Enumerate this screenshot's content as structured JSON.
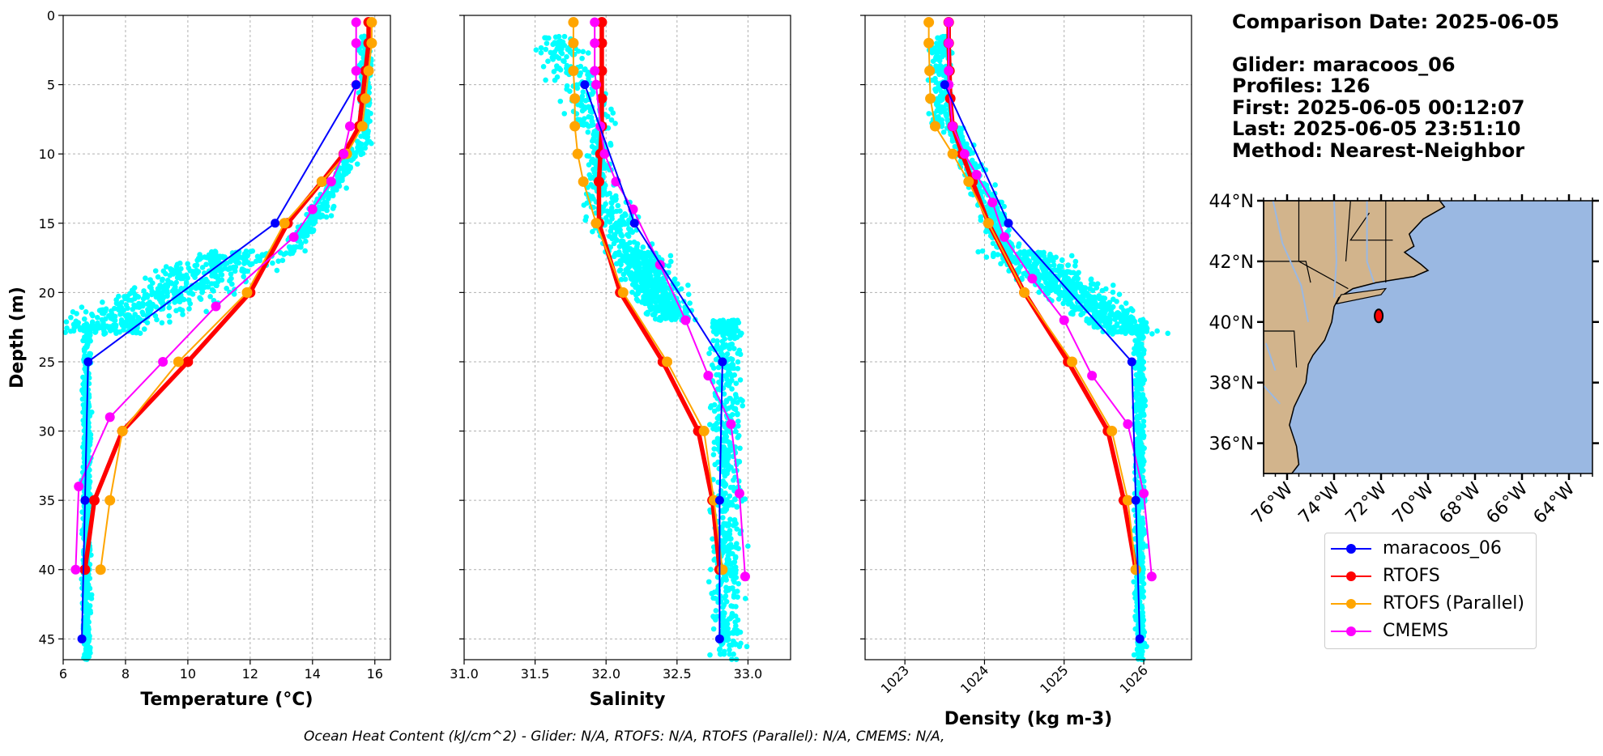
{
  "info": {
    "comparison_date": "Comparison Date: 2025-06-05",
    "glider": "Glider: maracoos_06",
    "profiles": "Profiles: 126",
    "first": "First: 2025-06-05 00:12:07",
    "last": "Last: 2025-06-05 23:51:10",
    "method": "Method: Nearest-Neighbor"
  },
  "footer": "Ocean Heat Content (kJ/cm^2) - Glider: N/A,  RTOFS: N/A,  RTOFS (Parallel): N/A,  CMEMS: N/A,",
  "legend": [
    {
      "label": "maracoos_06",
      "color": "#0000ff"
    },
    {
      "label": "RTOFS",
      "color": "#ff0000"
    },
    {
      "label": "RTOFS (Parallel)",
      "color": "#ffa500"
    },
    {
      "label": "CMEMS",
      "color": "#ff00ff"
    }
  ],
  "colors": {
    "glider_points": "#00ffff",
    "land": "#d2b48c",
    "ocean": "#9ab8e2",
    "grid": "#b0b0b0"
  },
  "chart_data": [
    {
      "type": "line",
      "id": "temperature",
      "xlabel": "Temperature (°C)",
      "ylabel": "Depth (m)",
      "xlim": [
        6,
        16.5
      ],
      "ylim": [
        46.5,
        0
      ],
      "xticks": [
        6,
        8,
        10,
        12,
        14,
        16
      ],
      "yticks": [
        0,
        5,
        10,
        15,
        20,
        25,
        30,
        35,
        40,
        45
      ],
      "grid": true,
      "series": [
        {
          "name": "maracoos_06",
          "depth": [
            5,
            15,
            25,
            35,
            45
          ],
          "values": [
            15.4,
            12.8,
            6.8,
            6.7,
            6.6
          ]
        },
        {
          "name": "RTOFS",
          "depth": [
            0.5,
            2,
            4,
            6,
            8,
            10,
            12,
            15,
            20,
            25,
            30,
            35,
            40
          ],
          "values": [
            15.8,
            15.8,
            15.7,
            15.6,
            15.5,
            15.0,
            14.3,
            13.2,
            12.0,
            10.0,
            7.9,
            7.0,
            6.7
          ]
        },
        {
          "name": "RTOFS (Parallel)",
          "depth": [
            0.5,
            2,
            4,
            6,
            8,
            10,
            12,
            15,
            20,
            25,
            30,
            35,
            40
          ],
          "values": [
            15.9,
            15.9,
            15.8,
            15.7,
            15.6,
            15.1,
            14.3,
            13.1,
            11.9,
            9.7,
            7.9,
            7.5,
            7.2
          ]
        },
        {
          "name": "CMEMS",
          "depth": [
            0.5,
            2,
            4,
            5,
            8,
            10,
            12,
            14,
            16,
            21,
            25,
            29,
            34,
            40
          ],
          "values": [
            15.4,
            15.4,
            15.4,
            15.4,
            15.2,
            15.0,
            14.6,
            14.0,
            13.4,
            10.9,
            9.2,
            7.5,
            6.5,
            6.4
          ]
        }
      ]
    },
    {
      "type": "line",
      "id": "salinity",
      "xlabel": "Salinity",
      "xlim": [
        31.0,
        33.3
      ],
      "ylim": [
        46.5,
        0
      ],
      "xticks": [
        31.0,
        31.5,
        32.0,
        32.5,
        33.0
      ],
      "grid": true,
      "series": [
        {
          "name": "maracoos_06",
          "depth": [
            5,
            15,
            25,
            35,
            45
          ],
          "values": [
            31.85,
            32.2,
            32.82,
            32.8,
            32.8
          ]
        },
        {
          "name": "RTOFS",
          "depth": [
            0.5,
            2,
            4,
            6,
            8,
            10,
            12,
            15,
            20,
            25,
            30,
            35,
            40
          ],
          "values": [
            31.97,
            31.97,
            31.97,
            31.97,
            31.97,
            31.96,
            31.95,
            31.95,
            32.1,
            32.4,
            32.65,
            32.75,
            32.8
          ]
        },
        {
          "name": "RTOFS (Parallel)",
          "depth": [
            0.5,
            2,
            4,
            6,
            8,
            10,
            12,
            15,
            20,
            25,
            30,
            35,
            40
          ],
          "values": [
            31.77,
            31.77,
            31.77,
            31.78,
            31.78,
            31.8,
            31.84,
            31.93,
            32.12,
            32.43,
            32.69,
            32.76,
            32.82
          ]
        },
        {
          "name": "CMEMS",
          "depth": [
            0.5,
            2,
            4,
            5,
            8,
            10,
            12,
            14,
            18,
            22,
            26,
            29.5,
            34.5,
            40.5
          ],
          "values": [
            31.92,
            31.92,
            31.92,
            31.93,
            31.96,
            31.99,
            32.07,
            32.19,
            32.38,
            32.56,
            32.72,
            32.88,
            32.94,
            32.98
          ]
        }
      ]
    },
    {
      "type": "line",
      "id": "density",
      "xlabel": "Density (kg m-3)",
      "xlim": [
        1022.5,
        1026.6
      ],
      "ylim": [
        46.5,
        0
      ],
      "xticks": [
        1023,
        1024,
        1025,
        1026
      ],
      "grid": true,
      "series": [
        {
          "name": "maracoos_06",
          "depth": [
            5,
            15,
            25,
            35,
            45
          ],
          "values": [
            1023.5,
            1024.3,
            1025.85,
            1025.9,
            1025.95
          ]
        },
        {
          "name": "RTOFS",
          "depth": [
            0.5,
            2,
            4,
            6,
            8,
            10,
            12,
            15,
            20,
            25,
            30,
            35,
            40
          ],
          "values": [
            1023.55,
            1023.55,
            1023.56,
            1023.57,
            1023.6,
            1023.72,
            1023.85,
            1024.05,
            1024.5,
            1025.05,
            1025.55,
            1025.75,
            1025.9
          ]
        },
        {
          "name": "RTOFS (Parallel)",
          "depth": [
            0.5,
            2,
            4,
            6,
            8,
            10,
            12,
            15,
            20,
            25,
            30,
            35,
            40
          ],
          "values": [
            1023.3,
            1023.3,
            1023.31,
            1023.32,
            1023.38,
            1023.6,
            1023.8,
            1024.05,
            1024.5,
            1025.1,
            1025.6,
            1025.8,
            1025.9
          ]
        },
        {
          "name": "CMEMS",
          "depth": [
            0.5,
            2,
            4,
            5,
            8,
            10,
            11.5,
            13.5,
            16,
            19,
            22,
            26,
            29.5,
            34.5,
            40.5
          ],
          "values": [
            1023.55,
            1023.55,
            1023.55,
            1023.55,
            1023.6,
            1023.75,
            1023.9,
            1024.1,
            1024.25,
            1024.6,
            1025.0,
            1025.35,
            1025.8,
            1026.0,
            1026.1
          ]
        }
      ]
    },
    {
      "type": "map",
      "id": "location-map",
      "lat_ticks": [
        "44°N",
        "42°N",
        "40°N",
        "38°N",
        "36°N"
      ],
      "lon_ticks": [
        "76°W",
        "74°W",
        "72°W",
        "70°W",
        "68°W",
        "66°W",
        "64°W"
      ],
      "lat_values": [
        44,
        42,
        40,
        38,
        36
      ],
      "lon_values": [
        -76,
        -74,
        -72,
        -70,
        -68,
        -66,
        -64
      ],
      "lat_range": [
        35,
        44
      ],
      "lon_range": [
        -77,
        -63
      ],
      "glider_position": {
        "lat": 40.2,
        "lon": -72.1
      }
    }
  ]
}
